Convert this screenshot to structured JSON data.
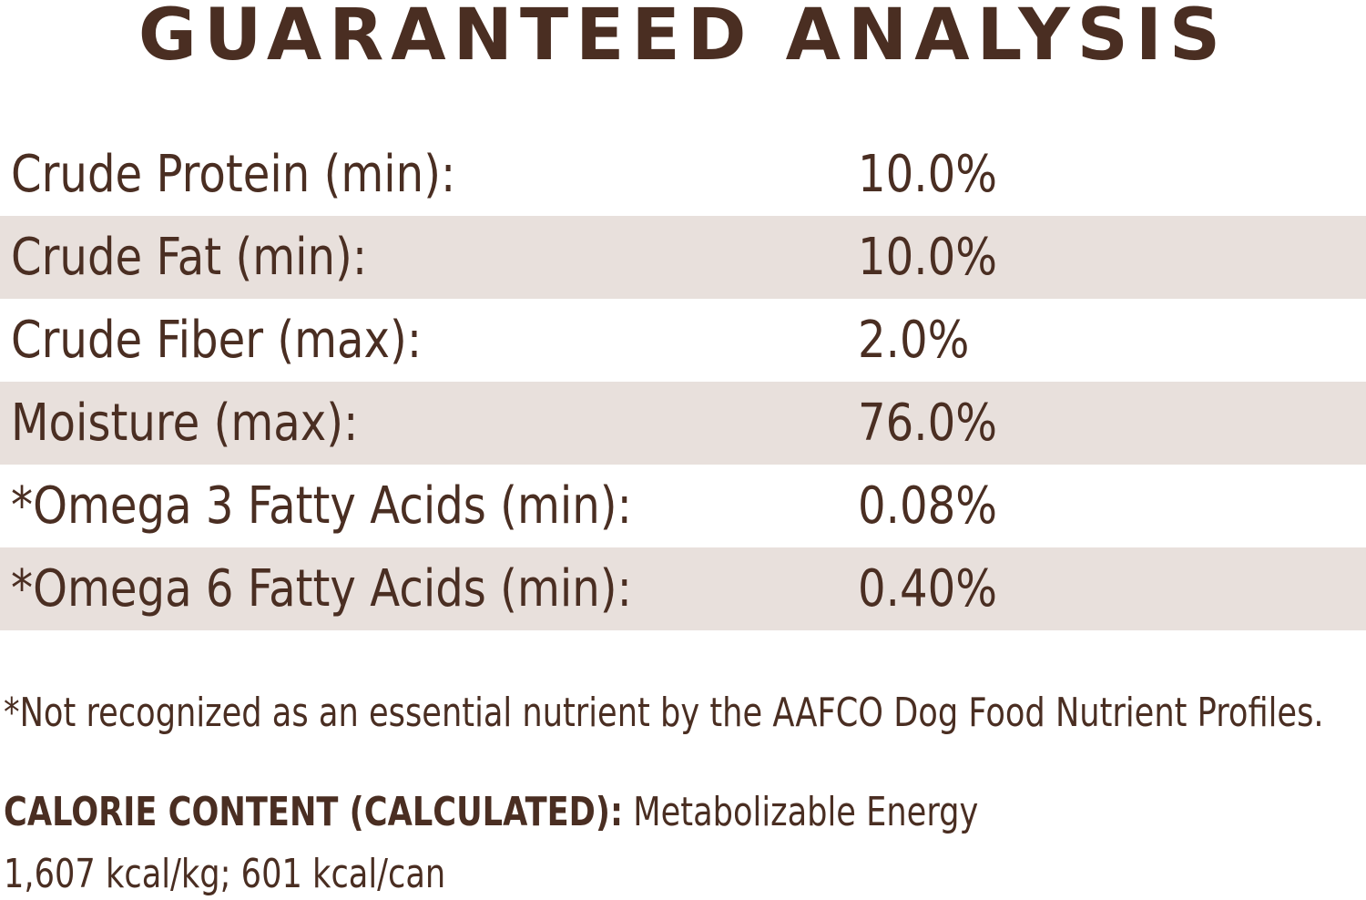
{
  "title": "GUARANTEED ANALYSIS",
  "analysis_rows": [
    {
      "label": "Crude Protein (min):",
      "value": "10.0%"
    },
    {
      "label": "Crude Fat (min):",
      "value": "10.0%"
    },
    {
      "label": "Crude Fiber (max):",
      "value": "2.0%"
    },
    {
      "label": "Moisture (max):",
      "value": "76.0%"
    },
    {
      "label": "*Omega 3 Fatty Acids (min):",
      "value": "0.08%"
    },
    {
      "label": "*Omega 6 Fatty Acids (min):",
      "value": "0.40%"
    }
  ],
  "footnote": "*Not recognized as an essential nutrient by the AAFCO Dog Food Nutrient Profiles.",
  "calorie": {
    "heading": "CALORIE CONTENT (CALCULATED):",
    "text": "Metabolizable Energy",
    "values": "1,607 kcal/kg; 601 kcal/can"
  },
  "colors": {
    "text": "#4a2e22",
    "row_shade": "#e8e0dc",
    "background": "#ffffff"
  }
}
